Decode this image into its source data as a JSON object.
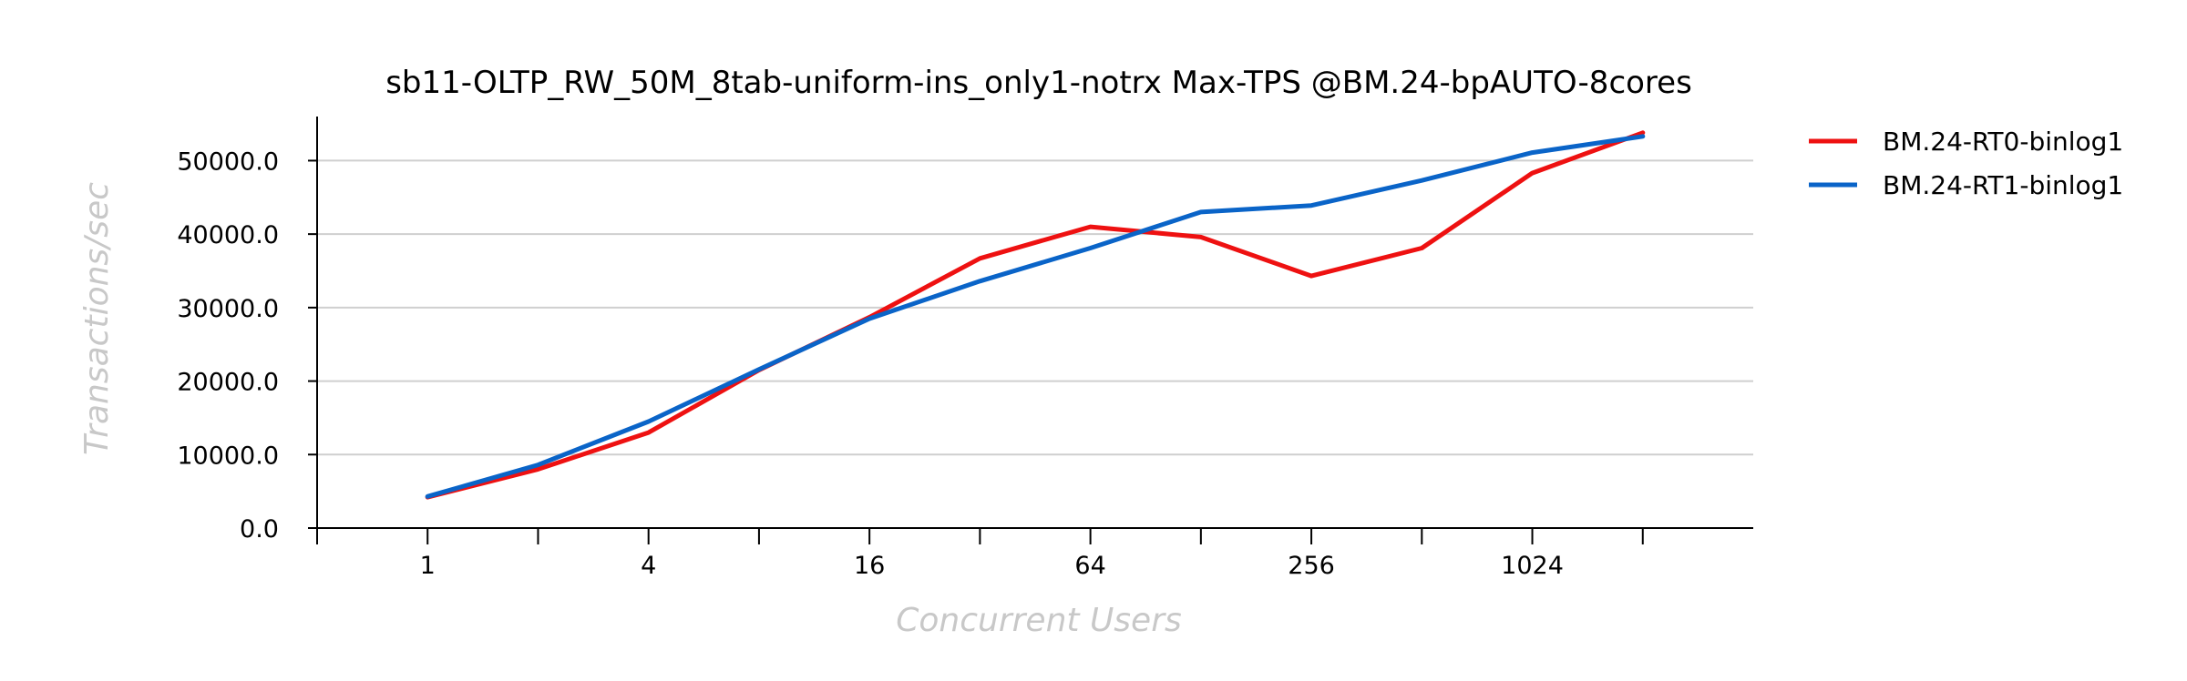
{
  "chart_data": {
    "type": "line",
    "title": "sb11-OLTP_RW_50M_8tab-uniform-ins_only1-notrx Max-TPS @BM.24-bpAUTO-8cores",
    "xlabel": "Concurrent Users",
    "ylabel": "Transactions/sec",
    "x_scale": "log2",
    "x": [
      1,
      2,
      4,
      8,
      16,
      32,
      64,
      128,
      256,
      512,
      1024,
      2048
    ],
    "x_ticks": [
      1,
      2,
      4,
      8,
      16,
      32,
      64,
      128,
      256,
      512,
      1024,
      2048
    ],
    "x_tick_labels": [
      "1",
      "",
      "4",
      "",
      "16",
      "",
      "64",
      "",
      "256",
      "",
      "1024",
      ""
    ],
    "xlim": [
      0.5,
      4096
    ],
    "ylim": [
      0,
      56000
    ],
    "y_ticks": [
      0,
      10000,
      20000,
      30000,
      40000,
      50000
    ],
    "y_tick_labels": [
      "0.0",
      "10000.0",
      "20000.0",
      "30000.0",
      "40000.0",
      "50000.0"
    ],
    "grid": "horizontal",
    "legend_position": "outside-top-right",
    "series": [
      {
        "name": "BM.24-RT0-binlog1",
        "color": "#ee1111",
        "values": [
          4200,
          8000,
          13000,
          21500,
          28700,
          36700,
          41000,
          39600,
          34300,
          38100,
          48300,
          53800
        ]
      },
      {
        "name": "BM.24-RT1-binlog1",
        "color": "#0a64c8",
        "values": [
          4300,
          8600,
          14500,
          21600,
          28500,
          33600,
          38100,
          43000,
          43900,
          47300,
          51100,
          53300
        ]
      }
    ]
  }
}
